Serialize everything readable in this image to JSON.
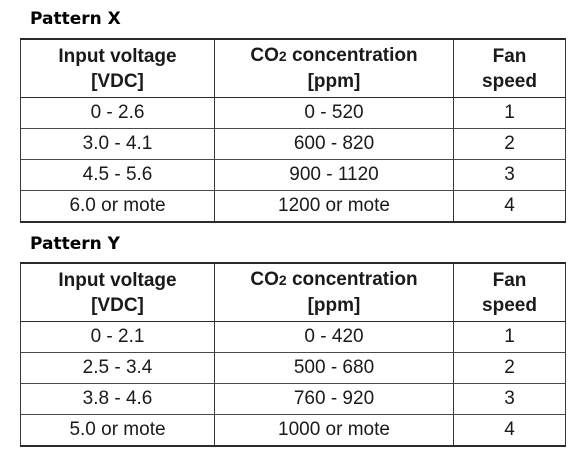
{
  "headers": {
    "input_line1": "Input voltage",
    "input_line2": "[VDC]",
    "co2_prefix": "CO",
    "co2_subscript": "2",
    "co2_suffix": " concentration",
    "co2_line2": "[ppm]",
    "fan_line1": "Fan",
    "fan_line2": "speed"
  },
  "patterns": [
    {
      "title": "Pattern X",
      "rows": [
        {
          "voltage": "0 - 2.6",
          "co2": "0 - 520",
          "fan": "1"
        },
        {
          "voltage": "3.0 - 4.1",
          "co2": "600 - 820",
          "fan": "2"
        },
        {
          "voltage": "4.5 - 5.6",
          "co2": "900 - 1120",
          "fan": "3"
        },
        {
          "voltage": "6.0 or mote",
          "co2": "1200 or mote",
          "fan": "4"
        }
      ]
    },
    {
      "title": "Pattern Y",
      "rows": [
        {
          "voltage": "0 - 2.1",
          "co2": "0 - 420",
          "fan": "1"
        },
        {
          "voltage": "2.5 - 3.4",
          "co2": "500 - 680",
          "fan": "2"
        },
        {
          "voltage": "3.8 - 4.6",
          "co2": "760 - 920",
          "fan": "3"
        },
        {
          "voltage": "5.0 or mote",
          "co2": "1000 or mote",
          "fan": "4"
        }
      ]
    }
  ]
}
